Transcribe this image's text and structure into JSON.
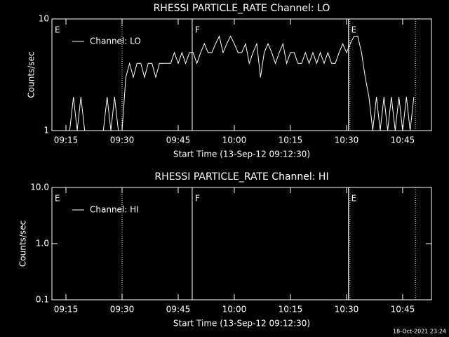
{
  "chart_data": [
    {
      "type": "line",
      "title": "RHESSI PARTICLE_RATE Channel: LO",
      "xlabel": "Start Time (13-Sep-12 09:12:30)",
      "ylabel": "Counts/sec",
      "ylog": true,
      "ylim": [
        1,
        10
      ],
      "yticks": [
        1,
        10
      ],
      "xlim": [
        551.25,
        652.7
      ],
      "xticks": [
        {
          "value": 555,
          "label": "09:15"
        },
        {
          "value": 570,
          "label": "09:30"
        },
        {
          "value": 585,
          "label": "09:45"
        },
        {
          "value": 600,
          "label": "10:00"
        },
        {
          "value": 615,
          "label": "10:15"
        },
        {
          "value": 630,
          "label": "10:30"
        },
        {
          "value": 645,
          "label": "10:45"
        }
      ],
      "legend": "upper left",
      "annotations": [
        {
          "x": 551.25,
          "label": "E",
          "style": "solid"
        },
        {
          "x": 570,
          "style": "dotted"
        },
        {
          "x": 588.75,
          "label": "F",
          "style": "solid"
        },
        {
          "x": 630.5,
          "label": "E",
          "style": "solid"
        },
        {
          "x": 630.9,
          "style": "dotted"
        },
        {
          "x": 648.4,
          "style": "dotted"
        }
      ],
      "series": [
        {
          "name": "Channel: LO",
          "color": "#ffffff",
          "x": [
            552,
            553,
            554,
            555,
            556,
            557,
            558,
            559,
            560,
            561,
            562,
            563,
            564,
            565,
            566,
            567,
            568,
            569,
            570,
            571,
            572,
            573,
            574,
            575,
            576,
            577,
            578,
            579,
            580,
            581,
            582,
            583,
            584,
            585,
            586,
            587,
            588,
            589,
            590,
            591,
            592,
            593,
            594,
            595,
            596,
            597,
            598,
            599,
            600,
            601,
            602,
            603,
            604,
            605,
            606,
            607,
            608,
            609,
            610,
            611,
            612,
            613,
            614,
            615,
            616,
            617,
            618,
            619,
            620,
            621,
            622,
            623,
            624,
            625,
            626,
            627,
            628,
            629,
            630,
            631,
            632,
            633,
            634,
            635,
            636,
            637,
            638,
            639,
            640,
            641,
            642,
            643,
            644,
            645,
            646,
            647,
            648
          ],
          "values": [
            1,
            1,
            1,
            1,
            1,
            2,
            1,
            2,
            1,
            1,
            1,
            1,
            1,
            1,
            2,
            1,
            2,
            1,
            1,
            3,
            4,
            3,
            4,
            4,
            3,
            4,
            4,
            3,
            4,
            4,
            4,
            4,
            5,
            4,
            5,
            4,
            5,
            5,
            4,
            5,
            6,
            5,
            5,
            6,
            7,
            5,
            6,
            7,
            6,
            5,
            5,
            6,
            4,
            5,
            6,
            3,
            5,
            6,
            5,
            4,
            5,
            6,
            4,
            5,
            5,
            4,
            4,
            5,
            4,
            5,
            4,
            5,
            4,
            5,
            4,
            4,
            5,
            6,
            5,
            6,
            7,
            7,
            5,
            3,
            2,
            1,
            2,
            1,
            2,
            1,
            2,
            1,
            2,
            1,
            2,
            1,
            2
          ]
        }
      ]
    },
    {
      "type": "line",
      "title": "RHESSI PARTICLE_RATE Channel: HI",
      "xlabel": "Start Time (13-Sep-12 09:12:30)",
      "ylabel": "Counts/sec",
      "ylog": true,
      "ylim": [
        0.1,
        10
      ],
      "yticks": [
        {
          "value": 0.1,
          "label": "0.1"
        },
        {
          "value": 1,
          "label": "1.0"
        },
        {
          "value": 10,
          "label": "10.0"
        }
      ],
      "xlim": [
        551.25,
        652.7
      ],
      "xticks": [
        {
          "value": 555,
          "label": "09:15"
        },
        {
          "value": 570,
          "label": "09:30"
        },
        {
          "value": 585,
          "label": "09:45"
        },
        {
          "value": 600,
          "label": "10:00"
        },
        {
          "value": 615,
          "label": "10:15"
        },
        {
          "value": 630,
          "label": "10:30"
        },
        {
          "value": 645,
          "label": "10:45"
        }
      ],
      "legend": "upper left",
      "annotations": [
        {
          "x": 551.25,
          "label": "E",
          "style": "solid"
        },
        {
          "x": 570,
          "style": "dotted"
        },
        {
          "x": 588.75,
          "label": "F",
          "style": "solid"
        },
        {
          "x": 630.5,
          "label": "E",
          "style": "solid"
        },
        {
          "x": 630.9,
          "style": "dotted"
        },
        {
          "x": 648.4,
          "style": "dotted"
        }
      ],
      "series": [
        {
          "name": "Channel: HI",
          "color": "#ffffff",
          "x": [],
          "values": []
        }
      ]
    }
  ],
  "footer": "18-Oct-2021 23:24"
}
